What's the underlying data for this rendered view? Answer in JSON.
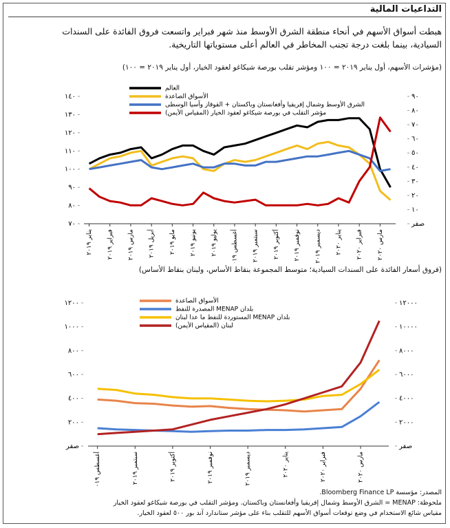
{
  "title": "التداعيات المالية",
  "paragraph": [
    "هبطت أسواق الأسهم في أنحاء منطقة الشرق الأوسط منذ شهر فبراير واتسعت فروق الفائدة على السندات",
    "السيادية، بينما بلغت درجة تجنب المخاطر في العالم أعلى مستوياتها التاريخية."
  ],
  "chart_data": [
    {
      "type": "line",
      "title": "(مؤشرات الأسهم، أول يناير ٢٠١٩ = ١٠٠ ومؤشر تقلب بورصة شيكاغو لعقود الخيار، أول يناير ٢٠١٩ = ١٠٠)",
      "categories": [
        "يناير ٢٠١٩",
        null,
        "فبراير ٢٠١٩",
        null,
        "مارس ٢٠١٩",
        null,
        "أبريل ٢٠١٩",
        null,
        "مايو ٢٠١٩",
        null,
        "يونيو ٢٠١٩",
        null,
        "يوليو ٢٠١٩",
        null,
        "أغسطس ٢٠١٩",
        null,
        "سبتمبر ٢٠١٩",
        null,
        "أكتوبر ٢٠١٩",
        null,
        "نوفمبر ٢٠١٩",
        null,
        "ديسمبر ٢٠١٩",
        null,
        "يناير ٢٠٢٠",
        null,
        "فبراير ٢٠٢٠",
        null,
        "مارس ٢٠٢٠",
        null
      ],
      "series": [
        {
          "name": "العالم",
          "color": "#000000",
          "values": [
            103,
            106,
            108,
            109,
            111,
            112,
            106,
            108,
            111,
            113,
            113,
            110,
            108,
            112,
            113,
            114,
            116,
            118,
            120,
            122,
            124,
            123,
            126,
            127,
            127,
            128,
            128,
            122,
            100,
            90
          ]
        },
        {
          "name": "الأسواق الصاعدة",
          "color": "#f2bd1d",
          "values": [
            100,
            103,
            106,
            107,
            109,
            110,
            102,
            104,
            106,
            107,
            106,
            100,
            99,
            103,
            105,
            104,
            105,
            107,
            109,
            111,
            113,
            111,
            114,
            115,
            113,
            112,
            108,
            103,
            88,
            83
          ]
        },
        {
          "name": "الشرق الأوسط وشمال إفريقيا وأفغانستان وباكستان + القوقاز وآسيا الوسطى",
          "color": "#4472c4",
          "values": [
            100,
            101,
            102,
            103,
            104,
            105,
            101,
            100,
            101,
            102,
            103,
            101,
            101,
            103,
            103,
            102,
            102,
            104,
            104,
            105,
            106,
            107,
            107,
            108,
            109,
            110,
            108,
            106,
            99,
            100
          ]
        },
        {
          "name": "مؤشر التقلب في بورصة شيكاغو لعقود الخيار (المقياس الأيمن)",
          "color": "#c00000",
          "axis": "y2",
          "values": [
            25,
            19,
            16,
            15,
            13,
            13,
            18,
            16,
            14,
            13,
            14,
            22,
            18,
            16,
            15,
            16,
            17,
            13,
            13,
            13,
            13,
            14,
            13,
            14,
            18,
            15,
            30,
            40,
            75,
            65
          ]
        }
      ],
      "ylim": [
        70,
        140
      ],
      "yticks": [
        {
          "value": 70,
          "label": "٧٠"
        },
        {
          "value": 80,
          "label": "٨٠"
        },
        {
          "value": 90,
          "label": "٩٠"
        },
        {
          "value": 100,
          "label": "١٠٠"
        },
        {
          "value": 110,
          "label": "١١٠"
        },
        {
          "value": 120,
          "label": "١٢٠"
        },
        {
          "value": 130,
          "label": "١٣٠"
        },
        {
          "value": 140,
          "label": "١٤٠"
        }
      ],
      "y2lim": [
        0,
        90
      ],
      "y2ticks": [
        {
          "value": 0,
          "label": "صفر"
        },
        {
          "value": 10,
          "label": "١٠"
        },
        {
          "value": 20,
          "label": "٢٠"
        },
        {
          "value": 30,
          "label": "٣٠"
        },
        {
          "value": 40,
          "label": "٤٠"
        },
        {
          "value": 50,
          "label": "٥٠"
        },
        {
          "value": 60,
          "label": "٦٠"
        },
        {
          "value": 70,
          "label": "٧٠"
        },
        {
          "value": 80,
          "label": "٨٠"
        },
        {
          "value": 90,
          "label": "٩٠"
        }
      ]
    },
    {
      "type": "line",
      "title": "(فروق أسعار الفائدة على السندات السيادية؛ متوسط المجموعة بنقاط الأساس، ولبنان بنقاط الأساس)",
      "categories": [
        "أغسطس ٢٠١٩",
        null,
        "سبتمبر ٢٠١٩",
        null,
        "أكتوبر ٢٠١٩",
        null,
        "نوفمبر ٢٠١٩",
        null,
        "ديسمبر ٢٠١٩",
        null,
        "يناير ٢٠٢٠",
        null,
        "فبراير ٢٠٢٠",
        null,
        "مارس ٢٠٢٠",
        null
      ],
      "series": [
        {
          "name": "الأسواق الصاعدة",
          "color": "#e8844a",
          "values": [
            390,
            380,
            360,
            355,
            340,
            330,
            335,
            320,
            310,
            305,
            300,
            290,
            300,
            310,
            480,
            720
          ]
        },
        {
          "name": "بلدان MENAP المصدرة للنفط",
          "color": "#4a7fd4",
          "values": [
            150,
            140,
            135,
            130,
            125,
            120,
            125,
            130,
            130,
            135,
            135,
            140,
            150,
            160,
            250,
            370
          ]
        },
        {
          "name": "بلدان MENAP المستوردة للنفط ما عدا لبنان",
          "color": "#f5c000",
          "values": [
            480,
            470,
            440,
            430,
            410,
            400,
            400,
            390,
            380,
            375,
            380,
            390,
            420,
            430,
            520,
            640
          ]
        },
        {
          "name": "لبنان (المقياس الأيمن)",
          "color": "#b22222",
          "axis": "y2",
          "values": [
            1000,
            1100,
            1200,
            1300,
            1400,
            1800,
            2200,
            2500,
            2800,
            3100,
            3500,
            4000,
            4500,
            5000,
            7000,
            10500
          ]
        }
      ],
      "ylim": [
        0,
        1200
      ],
      "yticks": [
        {
          "value": 0,
          "label": "صفر"
        },
        {
          "value": 200,
          "label": "٢٠٠"
        },
        {
          "value": 400,
          "label": "٤٠٠"
        },
        {
          "value": 600,
          "label": "٦٠٠"
        },
        {
          "value": 800,
          "label": "٨٠٠"
        },
        {
          "value": 1000,
          "label": "١٠٠٠"
        },
        {
          "value": 1200,
          "label": "١٢٠٠"
        }
      ],
      "y2lim": [
        0,
        12000
      ],
      "y2ticks": [
        {
          "value": 0,
          "label": "صفر"
        },
        {
          "value": 2000,
          "label": "٢٠٠٠"
        },
        {
          "value": 4000,
          "label": "٤٠٠٠"
        },
        {
          "value": 6000,
          "label": "٦٠٠٠"
        },
        {
          "value": 8000,
          "label": "٨٠٠٠"
        },
        {
          "value": 10000,
          "label": "١٠٠٠٠"
        },
        {
          "value": 12000,
          "label": "١٢٠٠٠"
        }
      ]
    }
  ],
  "source": "المصدر: مؤسسة Bloomberg Finance LP.",
  "note": [
    "ملحوظة: MENAP = الشرق الأوسط وشمال إفريقيا وأفغانستان وباكستان. ومؤشر التقلب في بورصة شيكاغو لعقود الخيار",
    "مقياس شائع الاستخدام في وضع توقعات أسواق الأسهم للتقلب بناء على مؤشر ستاندارد آند بور ٥٠٠ لعقود الخيار."
  ]
}
